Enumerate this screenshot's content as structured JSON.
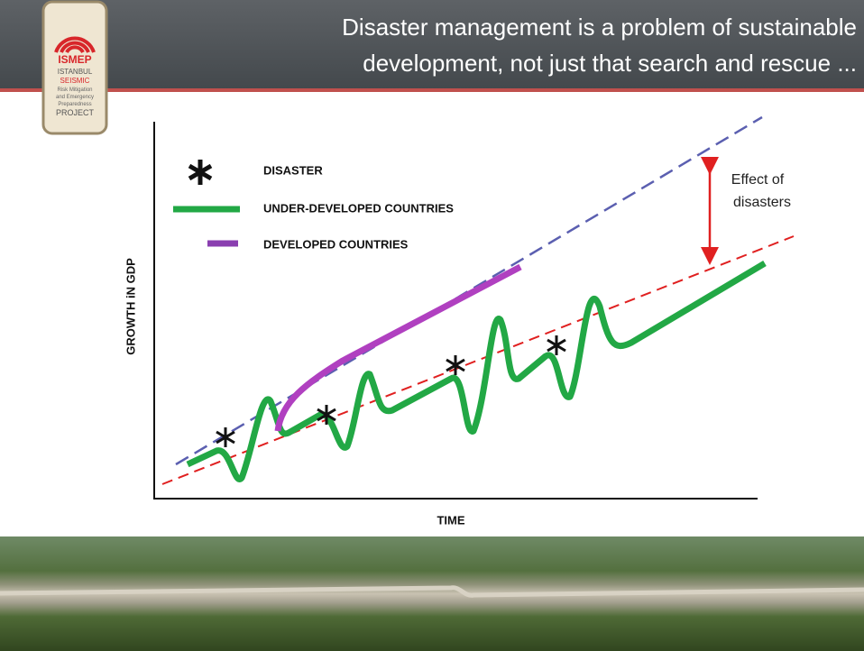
{
  "header": {
    "title_lines": [
      "Disaster management is a problem of sustainable",
      "development, not just that search and rescue ..."
    ]
  },
  "logo": {
    "lines": [
      "ISMEP",
      "ISTANBUL",
      "SEISMIC",
      "Risk Mitigation",
      "and Emergency",
      "Preparedness",
      "PROJECT"
    ]
  },
  "legend": {
    "items": [
      "DISASTER",
      "UNDER-DEVELOPED COUNTRIES",
      "DEVELOPED COUNTRIES"
    ]
  },
  "axes": {
    "y_label": "GROWTH iN GDP",
    "x_label": "TIME"
  },
  "annotation": {
    "lines": [
      "Effect of",
      "disasters"
    ]
  }
}
